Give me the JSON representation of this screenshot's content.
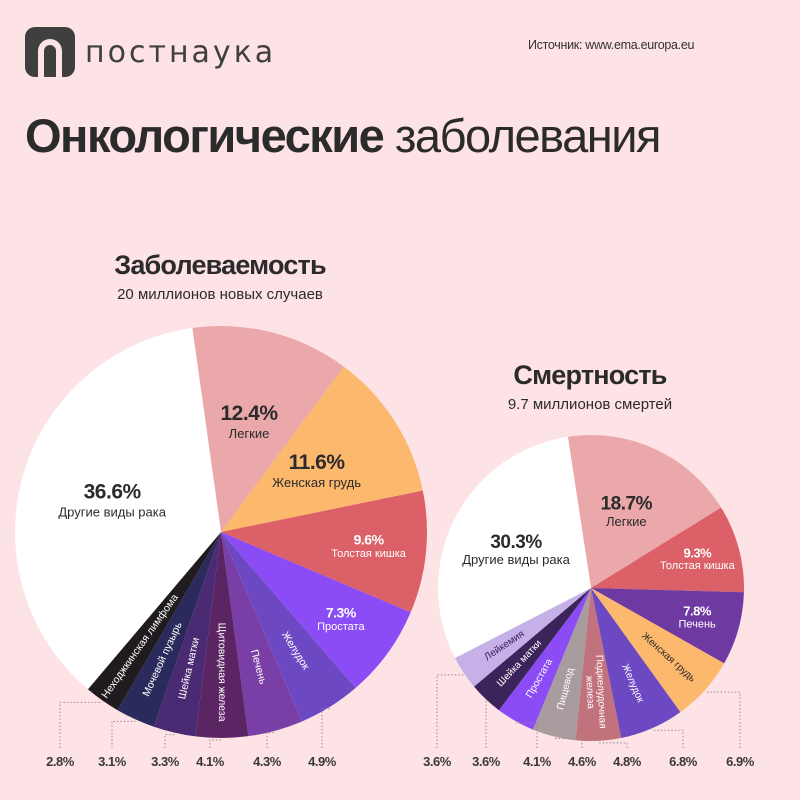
{
  "header": {
    "brand": "постнаука",
    "source": "Источник: www.ema.europa.eu",
    "title_bold": "Онкологические",
    "title_light": "заболевания"
  },
  "colors": {
    "background": "#fde2e6",
    "other": "#ffffff"
  },
  "chart_data": [
    {
      "type": "pie",
      "title": "Заболеваемость",
      "subtitle": "20 миллионов новых случаев",
      "slices": [
        {
          "label": "Легкие",
          "value": 12.4,
          "pct": "12.4%",
          "color": "#eaa8aa",
          "text": "#2b2b2b",
          "style": "big"
        },
        {
          "label": "Женская грудь",
          "value": 11.6,
          "pct": "11.6%",
          "color": "#fcb86c",
          "text": "#2b2b2b",
          "style": "big"
        },
        {
          "label": "Толстая кишка",
          "value": 9.6,
          "pct": "9.6%",
          "color": "#dc6068",
          "text": "#ffffff",
          "style": "mid"
        },
        {
          "label": "Простата",
          "value": 7.3,
          "pct": "7.3%",
          "color": "#8b4cf6",
          "text": "#ffffff",
          "style": "mid"
        },
        {
          "label": "Желудок",
          "value": 4.9,
          "pct": "4.9%",
          "color": "#6c49c2",
          "text": "#ffffff",
          "style": "small"
        },
        {
          "label": "Печень",
          "value": 4.3,
          "pct": "4.3%",
          "color": "#7a3fa6",
          "text": "#ffffff",
          "style": "small"
        },
        {
          "label": "Щитовидная железа",
          "value": 4.1,
          "pct": "4.1%",
          "color": "#5a2562",
          "text": "#ffffff",
          "style": "small"
        },
        {
          "label": "Шейка матки",
          "value": 3.3,
          "pct": "3.3%",
          "color": "#4a2a72",
          "text": "#ffffff",
          "style": "small"
        },
        {
          "label": "Мочевой пузырь",
          "value": 3.1,
          "pct": "3.1%",
          "color": "#2a2a5c",
          "text": "#ffffff",
          "style": "small"
        },
        {
          "label": "Неходжкинская лимфома",
          "value": 2.8,
          "pct": "2.8%",
          "color": "#1f1b1f",
          "text": "#ffffff",
          "style": "small"
        },
        {
          "label": "Другие виды рака",
          "value": 36.6,
          "pct": "36.6%",
          "color": "#ffffff",
          "text": "#2b2b2b",
          "style": "big"
        }
      ]
    },
    {
      "type": "pie",
      "title": "Смертность",
      "subtitle": "9.7 миллионов смертей",
      "slices": [
        {
          "label": "Легкие",
          "value": 18.7,
          "pct": "18.7%",
          "color": "#eaa8aa",
          "text": "#2b2b2b",
          "style": "big"
        },
        {
          "label": "Толстая кишка",
          "value": 9.3,
          "pct": "9.3%",
          "color": "#dc6068",
          "text": "#ffffff",
          "style": "mid"
        },
        {
          "label": "Печень",
          "value": 7.8,
          "pct": "7.8%",
          "color": "#6e3aa2",
          "text": "#ffffff",
          "style": "mid"
        },
        {
          "label": "Женская грудь",
          "value": 6.9,
          "pct": "6.9%",
          "color": "#fcb86c",
          "text": "#2b2b2b",
          "style": "small"
        },
        {
          "label": "Желудок",
          "value": 6.8,
          "pct": "6.8%",
          "color": "#6c49c2",
          "text": "#ffffff",
          "style": "small"
        },
        {
          "label": "Поджелудочная железа",
          "value": 4.8,
          "pct": "4.8%",
          "color": "#c2727c",
          "text": "#ffffff",
          "style": "small"
        },
        {
          "label": "Пищевод",
          "value": 4.6,
          "pct": "4.6%",
          "color": "#a99c9e",
          "text": "#ffffff",
          "style": "small"
        },
        {
          "label": "Простата",
          "value": 4.1,
          "pct": "4.1%",
          "color": "#8b4cf6",
          "text": "#ffffff",
          "style": "small"
        },
        {
          "label": "Шейка матки",
          "value": 3.6,
          "pct": "3.6%",
          "color": "#3b2459",
          "text": "#ffffff",
          "style": "small"
        },
        {
          "label": "Лейкемия",
          "value": 3.6,
          "pct": "3.6%",
          "color": "#c6b0e8",
          "text": "#3b2459",
          "style": "small"
        },
        {
          "label": "Другие виды рака",
          "value": 30.3,
          "pct": "30.3%",
          "color": "#ffffff",
          "text": "#2b2b2b",
          "style": "big"
        }
      ]
    }
  ]
}
